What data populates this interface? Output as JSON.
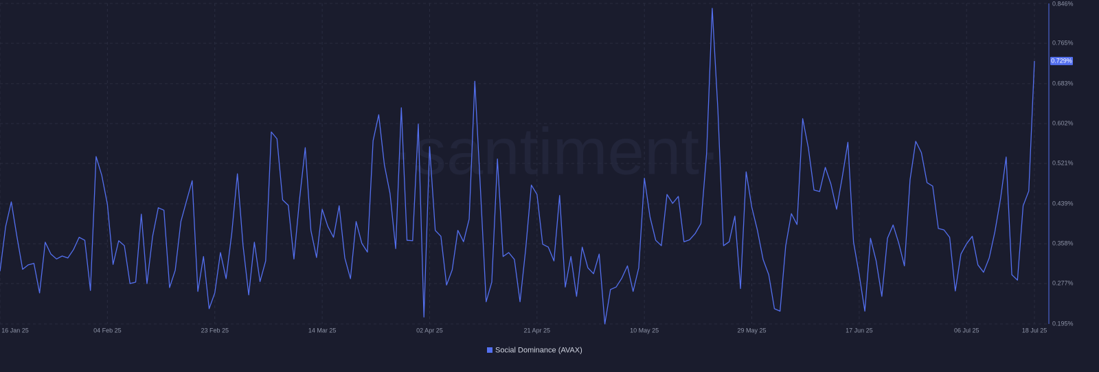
{
  "chart_data": {
    "type": "line",
    "watermark": "·santiment·",
    "x": [
      "2025-01-16",
      "2025-01-17",
      "2025-01-18",
      "2025-01-19",
      "2025-01-20",
      "2025-01-21",
      "2025-01-22",
      "2025-01-23",
      "2025-01-24",
      "2025-01-25",
      "2025-01-26",
      "2025-01-27",
      "2025-01-28",
      "2025-01-29",
      "2025-01-30",
      "2025-01-31",
      "2025-02-01",
      "2025-02-02",
      "2025-02-03",
      "2025-02-04",
      "2025-02-05",
      "2025-02-06",
      "2025-02-07",
      "2025-02-08",
      "2025-02-09",
      "2025-02-10",
      "2025-02-11",
      "2025-02-12",
      "2025-02-13",
      "2025-02-14",
      "2025-02-15",
      "2025-02-16",
      "2025-02-17",
      "2025-02-18",
      "2025-02-19",
      "2025-02-20",
      "2025-02-21",
      "2025-02-22",
      "2025-02-23",
      "2025-02-24",
      "2025-02-25",
      "2025-02-26",
      "2025-02-27",
      "2025-02-28",
      "2025-03-01",
      "2025-03-02",
      "2025-03-03",
      "2025-03-04",
      "2025-03-05",
      "2025-03-06",
      "2025-03-07",
      "2025-03-08",
      "2025-03-09",
      "2025-03-10",
      "2025-03-11",
      "2025-03-12",
      "2025-03-13",
      "2025-03-14",
      "2025-03-15",
      "2025-03-16",
      "2025-03-17",
      "2025-03-18",
      "2025-03-19",
      "2025-03-20",
      "2025-03-21",
      "2025-03-22",
      "2025-03-23",
      "2025-03-24",
      "2025-03-25",
      "2025-03-26",
      "2025-03-27",
      "2025-03-28",
      "2025-03-29",
      "2025-03-30",
      "2025-03-31",
      "2025-04-01",
      "2025-04-02",
      "2025-04-03",
      "2025-04-04",
      "2025-04-05",
      "2025-04-06",
      "2025-04-07",
      "2025-04-08",
      "2025-04-09",
      "2025-04-10",
      "2025-04-11",
      "2025-04-12",
      "2025-04-13",
      "2025-04-14",
      "2025-04-15",
      "2025-04-16",
      "2025-04-17",
      "2025-04-18",
      "2025-04-19",
      "2025-04-20",
      "2025-04-21",
      "2025-04-22",
      "2025-04-23",
      "2025-04-24",
      "2025-04-25",
      "2025-04-26",
      "2025-04-27",
      "2025-04-28",
      "2025-04-29",
      "2025-04-30",
      "2025-05-01",
      "2025-05-02",
      "2025-05-03",
      "2025-05-04",
      "2025-05-05",
      "2025-05-06",
      "2025-05-07",
      "2025-05-08",
      "2025-05-09",
      "2025-05-10",
      "2025-05-11",
      "2025-05-12",
      "2025-05-13",
      "2025-05-14",
      "2025-05-15",
      "2025-05-16",
      "2025-05-17",
      "2025-05-18",
      "2025-05-19",
      "2025-05-20",
      "2025-05-21",
      "2025-05-22",
      "2025-05-23",
      "2025-05-24",
      "2025-05-25",
      "2025-05-26",
      "2025-05-27",
      "2025-05-28",
      "2025-05-29",
      "2025-05-30",
      "2025-05-31",
      "2025-06-01",
      "2025-06-02",
      "2025-06-03",
      "2025-06-04",
      "2025-06-05",
      "2025-06-06",
      "2025-06-07",
      "2025-06-08",
      "2025-06-09",
      "2025-06-10",
      "2025-06-11",
      "2025-06-12",
      "2025-06-13",
      "2025-06-14",
      "2025-06-15",
      "2025-06-16",
      "2025-06-17",
      "2025-06-18",
      "2025-06-19",
      "2025-06-20",
      "2025-06-21",
      "2025-06-22",
      "2025-06-23",
      "2025-06-24",
      "2025-06-25",
      "2025-06-26",
      "2025-06-27",
      "2025-06-28",
      "2025-06-29",
      "2025-06-30",
      "2025-07-01",
      "2025-07-02",
      "2025-07-03",
      "2025-07-04",
      "2025-07-05",
      "2025-07-06",
      "2025-07-07",
      "2025-07-08",
      "2025-07-09",
      "2025-07-10",
      "2025-07-11",
      "2025-07-12",
      "2025-07-13",
      "2025-07-14",
      "2025-07-15",
      "2025-07-16",
      "2025-07-17",
      "2025-07-18"
    ],
    "series": [
      {
        "name": "Social Dominance (AVAX)",
        "color": "#5470f0",
        "last_value_label": "0.729%",
        "values": [
          0.302,
          0.393,
          0.443,
          0.372,
          0.306,
          0.315,
          0.318,
          0.258,
          0.361,
          0.337,
          0.327,
          0.333,
          0.329,
          0.346,
          0.371,
          0.365,
          0.263,
          0.535,
          0.497,
          0.438,
          0.316,
          0.364,
          0.354,
          0.277,
          0.28,
          0.418,
          0.277,
          0.373,
          0.431,
          0.426,
          0.269,
          0.304,
          0.403,
          0.445,
          0.486,
          0.261,
          0.332,
          0.226,
          0.258,
          0.34,
          0.287,
          0.379,
          0.5,
          0.354,
          0.254,
          0.361,
          0.281,
          0.323,
          0.585,
          0.571,
          0.447,
          0.436,
          0.327,
          0.449,
          0.553,
          0.385,
          0.33,
          0.428,
          0.393,
          0.371,
          0.435,
          0.329,
          0.287,
          0.403,
          0.359,
          0.341,
          0.567,
          0.62,
          0.518,
          0.46,
          0.348,
          0.634,
          0.365,
          0.364,
          0.601,
          0.209,
          0.555,
          0.385,
          0.373,
          0.274,
          0.305,
          0.385,
          0.362,
          0.408,
          0.688,
          0.468,
          0.24,
          0.28,
          0.53,
          0.332,
          0.34,
          0.326,
          0.24,
          0.347,
          0.477,
          0.458,
          0.357,
          0.351,
          0.323,
          0.456,
          0.27,
          0.332,
          0.251,
          0.351,
          0.309,
          0.297,
          0.337,
          0.195,
          0.265,
          0.27,
          0.288,
          0.313,
          0.261,
          0.309,
          0.491,
          0.412,
          0.365,
          0.354,
          0.458,
          0.44,
          0.454,
          0.362,
          0.366,
          0.379,
          0.399,
          0.541,
          0.836,
          0.63,
          0.354,
          0.362,
          0.414,
          0.267,
          0.504,
          0.432,
          0.385,
          0.326,
          0.295,
          0.226,
          0.221,
          0.354,
          0.419,
          0.397,
          0.612,
          0.553,
          0.467,
          0.464,
          0.513,
          0.479,
          0.428,
          0.493,
          0.564,
          0.361,
          0.295,
          0.221,
          0.369,
          0.323,
          0.251,
          0.369,
          0.396,
          0.359,
          0.313,
          0.488,
          0.566,
          0.543,
          0.482,
          0.475,
          0.389,
          0.386,
          0.371,
          0.262,
          0.337,
          0.358,
          0.373,
          0.315,
          0.3,
          0.329,
          0.382,
          0.449,
          0.534,
          0.295,
          0.284,
          0.435,
          0.465,
          0.729
        ]
      }
    ],
    "xlim": [
      "2025-01-16",
      "2025-07-18"
    ],
    "xticks": [
      {
        "value": "2025-01-16",
        "label": "16 Jan 25"
      },
      {
        "value": "2025-02-04",
        "label": "04 Feb 25"
      },
      {
        "value": "2025-02-23",
        "label": "23 Feb 25"
      },
      {
        "value": "2025-03-14",
        "label": "14 Mar 25"
      },
      {
        "value": "2025-04-02",
        "label": "02 Apr 25"
      },
      {
        "value": "2025-04-21",
        "label": "21 Apr 25"
      },
      {
        "value": "2025-05-10",
        "label": "10 May 25"
      },
      {
        "value": "2025-05-29",
        "label": "29 May 25"
      },
      {
        "value": "2025-06-17",
        "label": "17 Jun 25"
      },
      {
        "value": "2025-07-06",
        "label": "06 Jul 25"
      },
      {
        "value": "2025-07-18",
        "label": "18 Jul 25"
      }
    ],
    "ylim": [
      0.195,
      0.846
    ],
    "yticks": [
      {
        "value": 0.195,
        "label": "0.195%"
      },
      {
        "value": 0.277,
        "label": "0.277%"
      },
      {
        "value": 0.358,
        "label": "0.358%"
      },
      {
        "value": 0.439,
        "label": "0.439%"
      },
      {
        "value": 0.521,
        "label": "0.521%"
      },
      {
        "value": 0.602,
        "label": "0.602%"
      },
      {
        "value": 0.683,
        "label": "0.683%"
      },
      {
        "value": 0.765,
        "label": "0.765%"
      },
      {
        "value": 0.846,
        "label": "0.846%"
      }
    ],
    "grid": true,
    "legend": "bottom"
  }
}
